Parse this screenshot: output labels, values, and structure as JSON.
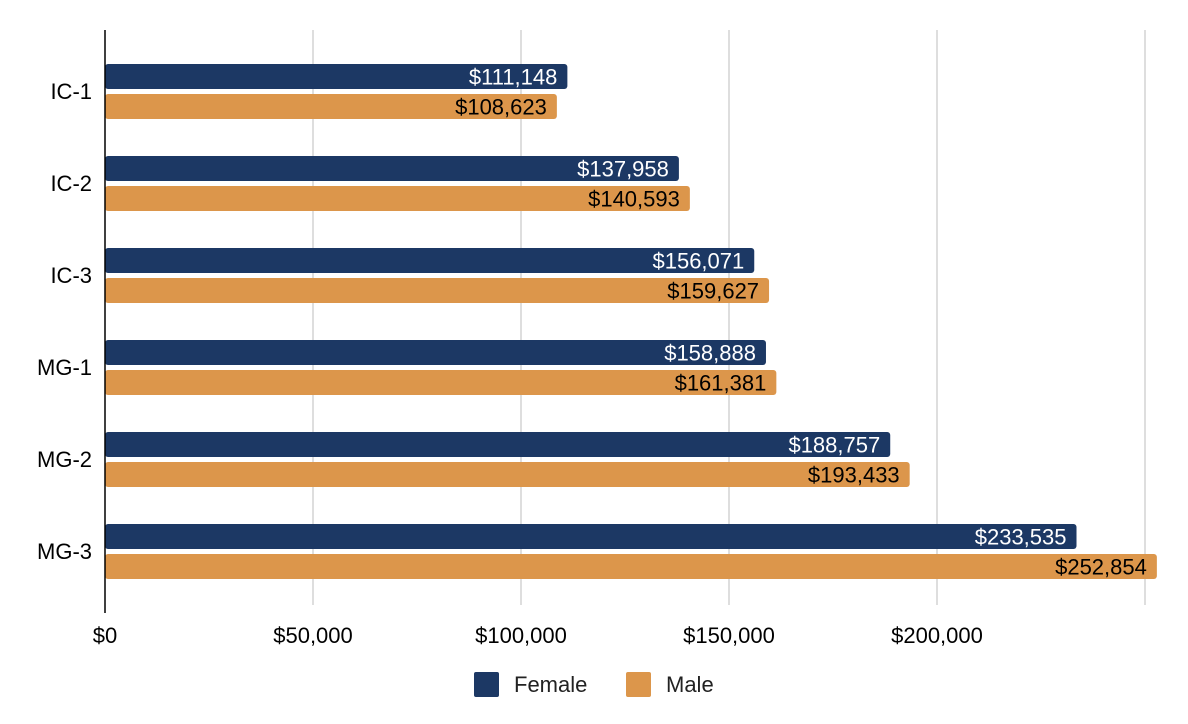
{
  "chart_data": {
    "type": "bar",
    "orientation": "horizontal",
    "title": "",
    "xlabel": "",
    "ylabel": "",
    "categories": [
      "IC-1",
      "IC-2",
      "IC-3",
      "MG-1",
      "MG-2",
      "MG-3"
    ],
    "series": [
      {
        "name": "Female",
        "color": "#1c3864",
        "label_color": "#ffffff",
        "values": [
          111148,
          137958,
          156071,
          158888,
          188757,
          233535
        ],
        "labels": [
          "$111,148",
          "$137,958",
          "$156,071",
          "$158,888",
          "$188,757",
          "$233,535"
        ]
      },
      {
        "name": "Male",
        "color": "#dc964b",
        "label_color": "#000000",
        "values": [
          108623,
          140593,
          159627,
          161381,
          193433,
          252854
        ],
        "labels": [
          "$108,623",
          "$140,593",
          "$159,627",
          "$161,381",
          "$193,433",
          "$252,854"
        ]
      }
    ],
    "xlim": [
      0,
      250000
    ],
    "x_ticks": [
      0,
      50000,
      100000,
      150000,
      200000
    ],
    "x_tick_labels": [
      "$0",
      "$50,000",
      "$100,000",
      "$150,000",
      "$200,000"
    ],
    "grid": true,
    "legend": "bottom-center"
  }
}
